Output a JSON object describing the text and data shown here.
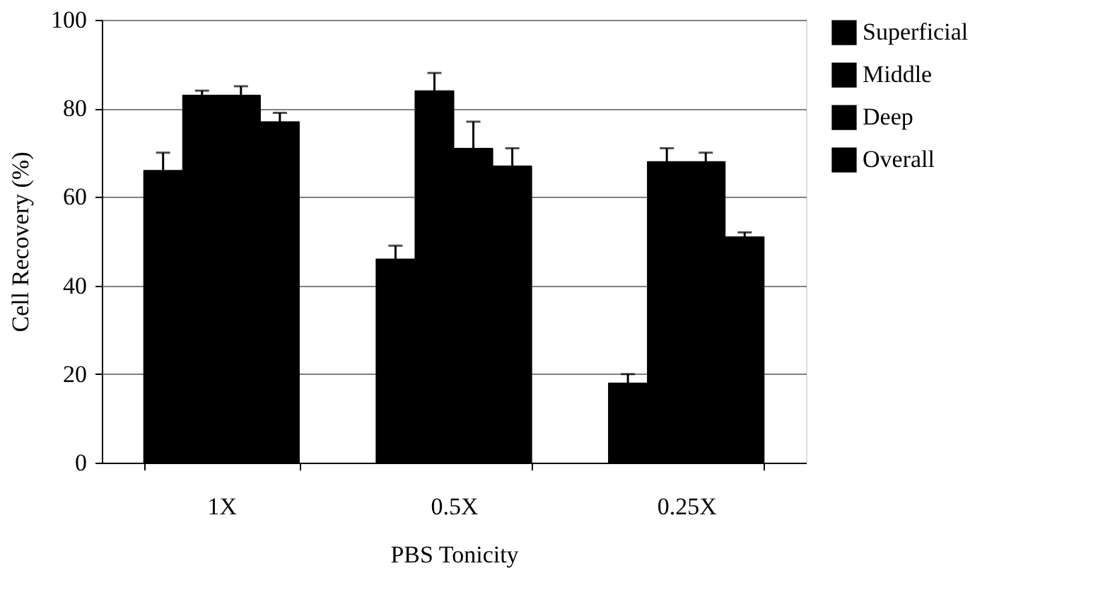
{
  "chart_data": {
    "type": "bar",
    "xlabel": "PBS Tonicity",
    "ylabel": "Cell Recovery (%)",
    "categories": [
      "1X",
      "0.5X",
      "0.25X"
    ],
    "series": [
      {
        "name": "Superficial",
        "color": "#000000",
        "values": [
          66,
          46,
          18
        ],
        "errors": [
          [
            66,
            70
          ],
          [
            46,
            49
          ],
          [
            18,
            20
          ]
        ]
      },
      {
        "name": "Middle",
        "color": "#000000",
        "values": [
          83,
          84,
          68
        ],
        "errors": [
          [
            83,
            84
          ],
          [
            84,
            88
          ],
          [
            68,
            71
          ]
        ]
      },
      {
        "name": "Deep",
        "color": "#000000",
        "values": [
          83,
          71,
          68
        ],
        "errors": [
          [
            83,
            85
          ],
          [
            71,
            77
          ],
          [
            68,
            70
          ]
        ]
      },
      {
        "name": "Overall",
        "color": "#000000",
        "values": [
          77,
          67,
          51
        ],
        "errors": [
          [
            77,
            79
          ],
          [
            67,
            71
          ],
          [
            51,
            52
          ]
        ]
      }
    ],
    "ylim": [
      0,
      100
    ],
    "yticks": [
      0,
      20,
      40,
      60,
      80,
      100
    ],
    "grid": "y",
    "legend": "right"
  }
}
